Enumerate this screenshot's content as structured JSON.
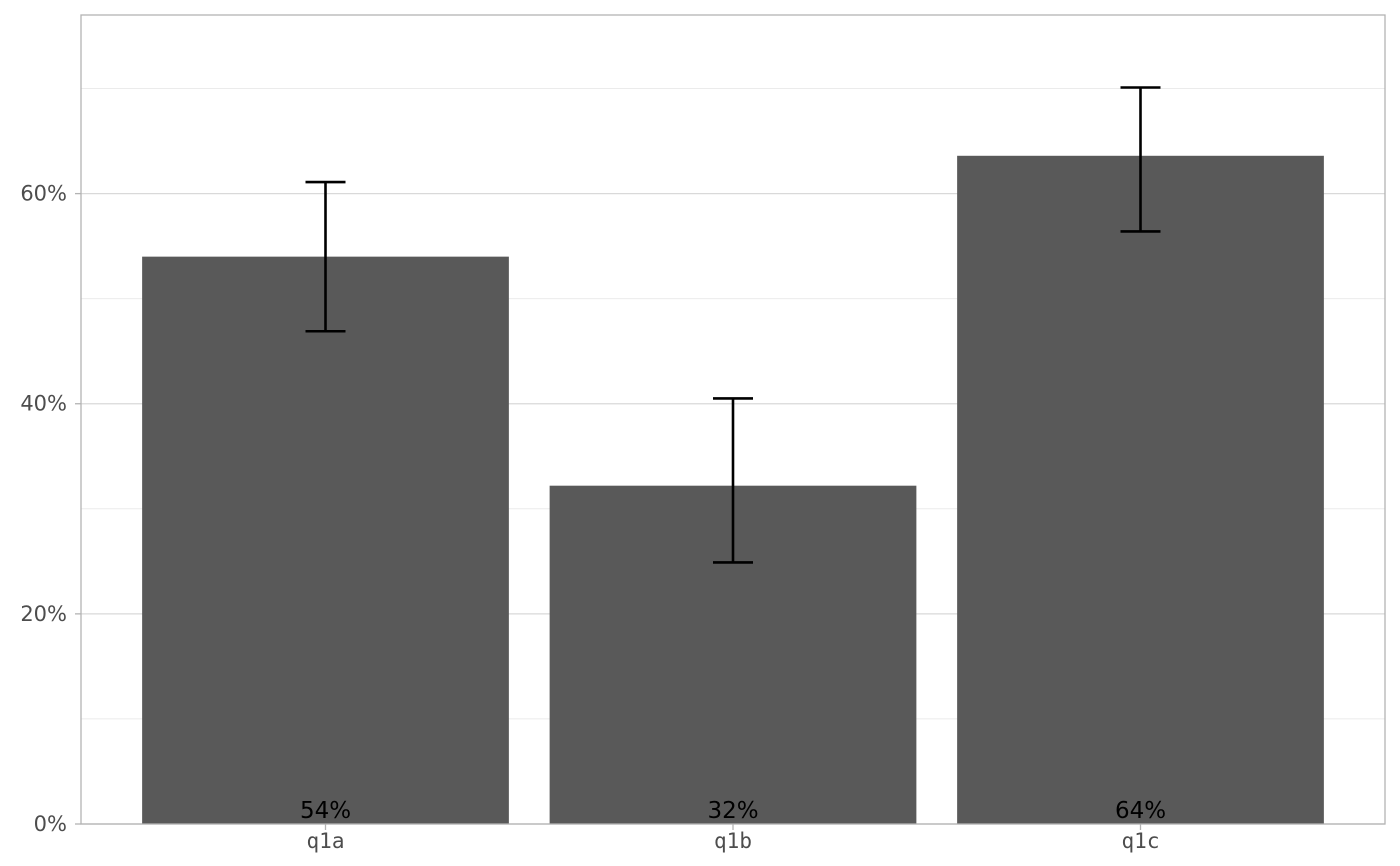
{
  "chart_data": {
    "type": "bar",
    "categories": [
      "q1a",
      "q1b",
      "q1c"
    ],
    "values": [
      0.54,
      0.322,
      0.636
    ],
    "data_labels": [
      "54%",
      "32%",
      "64%"
    ],
    "error_bars": [
      {
        "low": 0.469,
        "high": 0.611
      },
      {
        "low": 0.249,
        "high": 0.405
      },
      {
        "low": 0.564,
        "high": 0.701
      }
    ],
    "ylim": [
      0,
      0.77
    ],
    "y_ticks": [
      0,
      0.2,
      0.4,
      0.6
    ],
    "y_tick_labels": [
      "0%",
      "20%",
      "40%",
      "60%"
    ],
    "y_minor_ticks": [
      0.1,
      0.3,
      0.5,
      0.7
    ],
    "grid": true,
    "bar_color": "#595959",
    "error_bar_color": "#000000",
    "grid_color": "#d9d9d9",
    "minor_grid_color": "#ebebeb",
    "panel_border_color": "#b3b3b3",
    "tick_color": "#b3b3b3",
    "title": "",
    "xlabel": "",
    "ylabel": ""
  }
}
